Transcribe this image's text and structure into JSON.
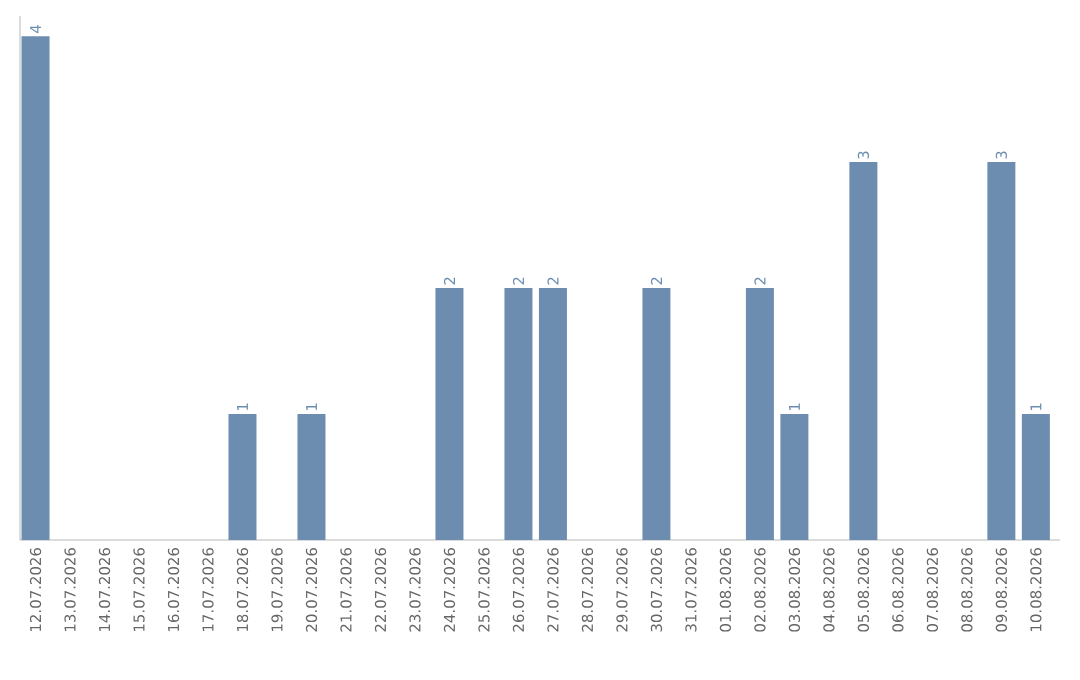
{
  "chart_data": {
    "type": "bar",
    "categories": [
      "12.07.2026",
      "13.07.2026",
      "14.07.2026",
      "15.07.2026",
      "16.07.2026",
      "17.07.2026",
      "18.07.2026",
      "19.07.2026",
      "20.07.2026",
      "21.07.2026",
      "22.07.2026",
      "23.07.2026",
      "24.07.2026",
      "25.07.2026",
      "26.07.2026",
      "27.07.2026",
      "28.07.2026",
      "29.07.2026",
      "30.07.2026",
      "31.07.2026",
      "01.08.2026",
      "02.08.2026",
      "03.08.2026",
      "04.08.2026",
      "05.08.2026",
      "06.08.2026",
      "07.08.2026",
      "08.08.2026",
      "09.08.2026",
      "10.08.2026"
    ],
    "values": [
      4,
      0,
      0,
      0,
      0,
      0,
      1,
      0,
      1,
      0,
      0,
      0,
      2,
      0,
      2,
      2,
      0,
      0,
      2,
      0,
      0,
      2,
      1,
      0,
      3,
      0,
      0,
      0,
      3,
      1
    ],
    "value_labels": [
      "4",
      null,
      null,
      null,
      null,
      null,
      "1",
      null,
      "1",
      null,
      null,
      null,
      "2",
      null,
      "2",
      "2",
      null,
      null,
      "2",
      null,
      null,
      "2",
      "1",
      null,
      "3",
      null,
      null,
      null,
      "3",
      "1"
    ],
    "color": "#6d8db0"
  }
}
